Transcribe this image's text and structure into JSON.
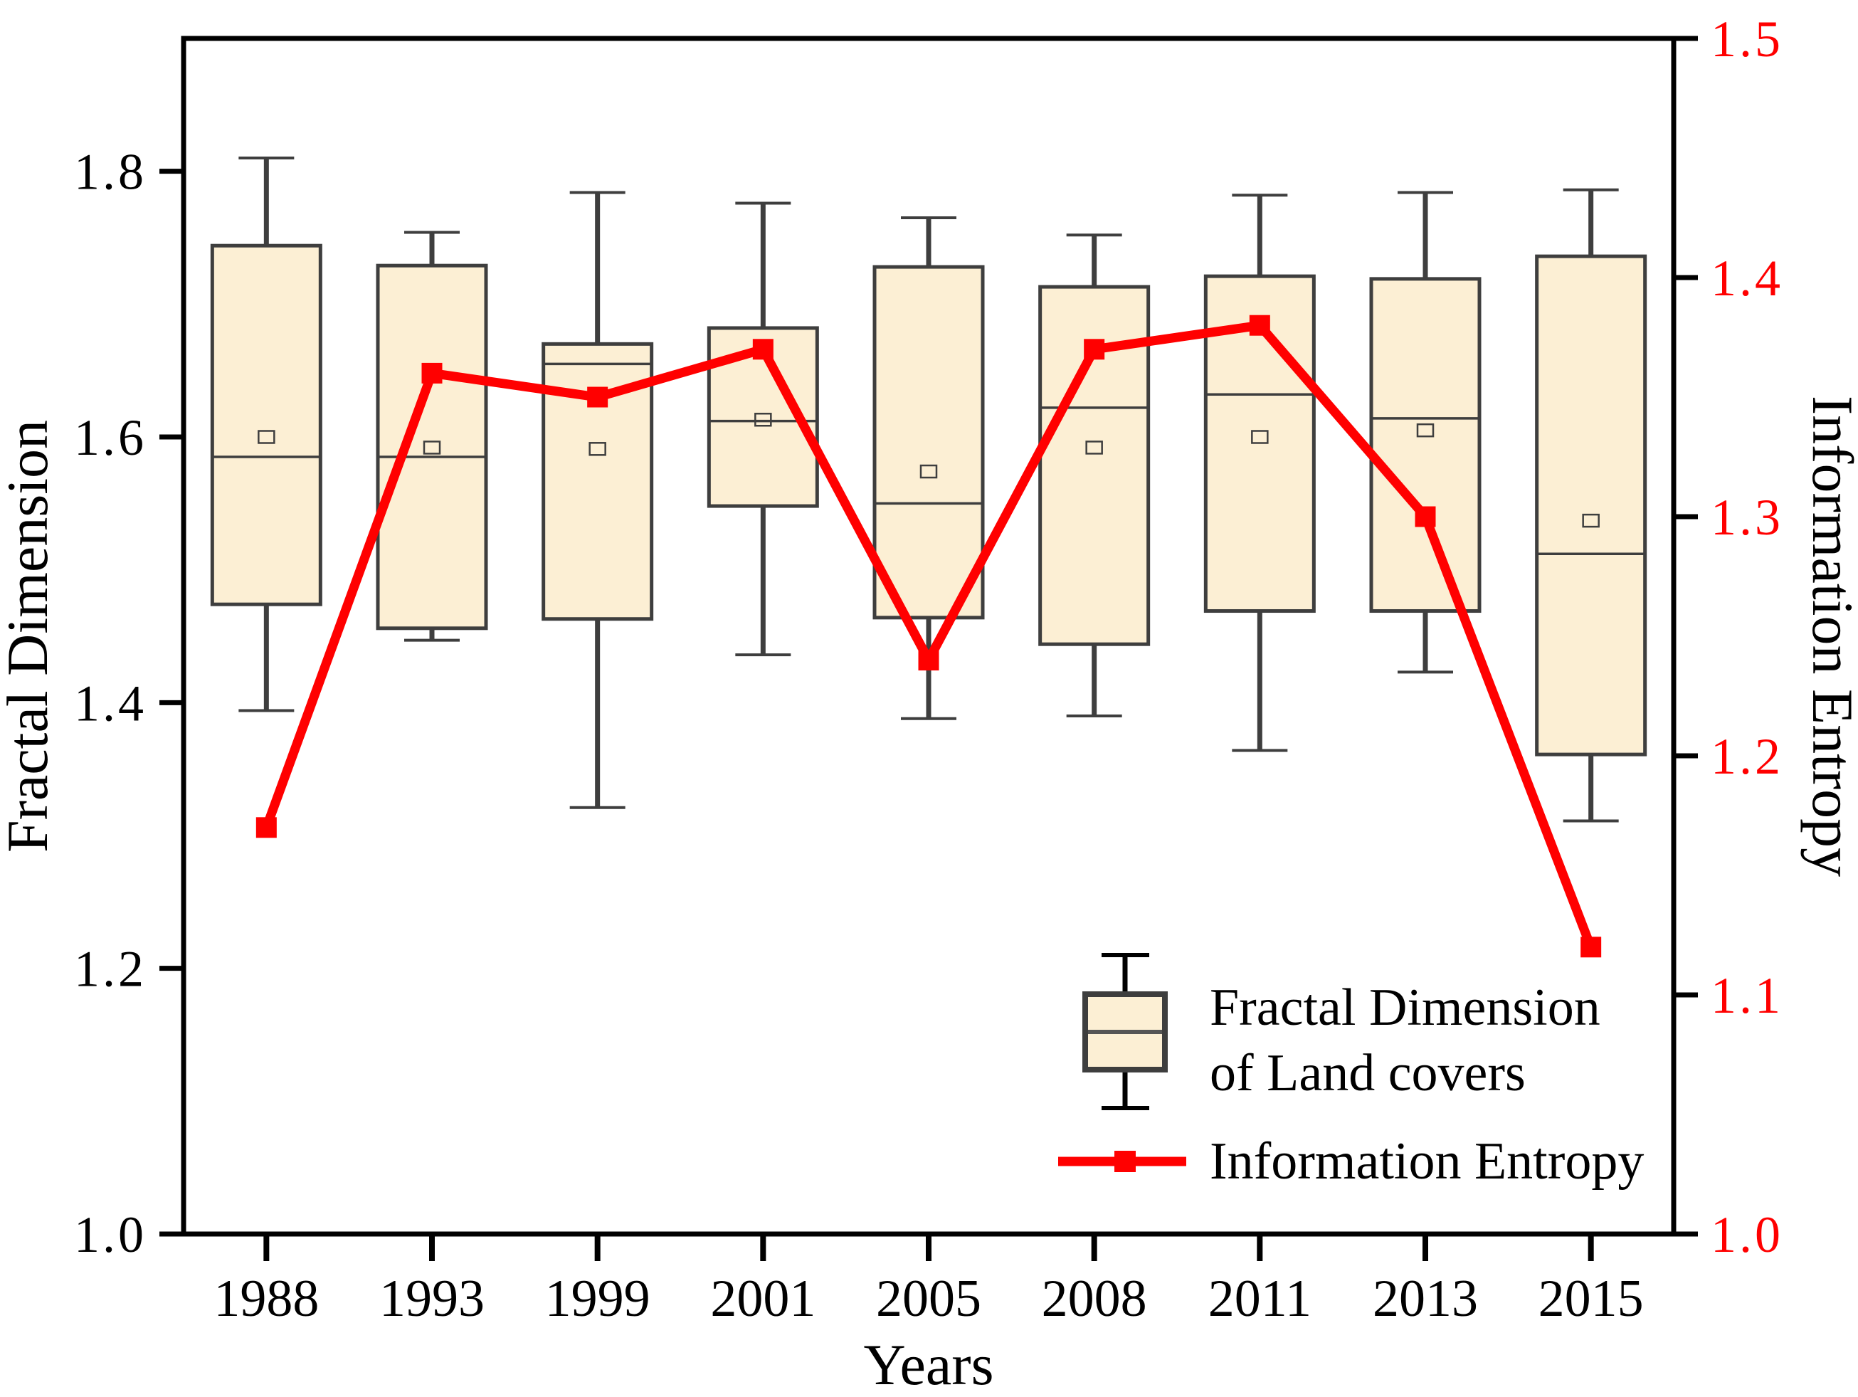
{
  "chart_data": {
    "type": "box+line",
    "title": "",
    "categories": [
      "1988",
      "1993",
      "1999",
      "2001",
      "2005",
      "2008",
      "2011",
      "2013",
      "2015"
    ],
    "box_series": {
      "name": "Fractal Dimension of Land covers",
      "axis": "left",
      "boxes": [
        {
          "year": "1988",
          "whisker_low": 1.394,
          "q1": 1.474,
          "median": 1.585,
          "mean": 1.6,
          "q3": 1.744,
          "whisker_high": 1.81
        },
        {
          "year": "1993",
          "whisker_low": 1.447,
          "q1": 1.456,
          "median": 1.585,
          "mean": 1.592,
          "q3": 1.729,
          "whisker_high": 1.754
        },
        {
          "year": "1999",
          "whisker_low": 1.321,
          "q1": 1.463,
          "median": 1.655,
          "mean": 1.591,
          "q3": 1.67,
          "whisker_high": 1.784
        },
        {
          "year": "2001",
          "whisker_low": 1.436,
          "q1": 1.548,
          "median": 1.612,
          "mean": 1.613,
          "q3": 1.682,
          "whisker_high": 1.776
        },
        {
          "year": "2005",
          "whisker_low": 1.388,
          "q1": 1.464,
          "median": 1.55,
          "mean": 1.574,
          "q3": 1.728,
          "whisker_high": 1.765
        },
        {
          "year": "2008",
          "whisker_low": 1.39,
          "q1": 1.444,
          "median": 1.622,
          "mean": 1.592,
          "q3": 1.713,
          "whisker_high": 1.752
        },
        {
          "year": "2011",
          "whisker_low": 1.364,
          "q1": 1.469,
          "median": 1.632,
          "mean": 1.6,
          "q3": 1.721,
          "whisker_high": 1.782
        },
        {
          "year": "2013",
          "whisker_low": 1.423,
          "q1": 1.469,
          "median": 1.614,
          "mean": 1.605,
          "q3": 1.719,
          "whisker_high": 1.784
        },
        {
          "year": "2015",
          "whisker_low": 1.311,
          "q1": 1.361,
          "median": 1.512,
          "mean": 1.537,
          "q3": 1.736,
          "whisker_high": 1.786
        }
      ]
    },
    "line_series": {
      "name": "Information Entropy",
      "axis": "right",
      "values": [
        1.17,
        1.36,
        1.35,
        1.37,
        1.24,
        1.37,
        1.38,
        1.3,
        1.12
      ]
    },
    "axes": {
      "left": {
        "label": "Fractal Dimension",
        "min": 1.0,
        "max": 1.9,
        "tick_labels": [
          "1.0",
          "1.2",
          "1.4",
          "1.6",
          "1.8"
        ]
      },
      "right": {
        "label": "Information Entropy",
        "min": 1.0,
        "max": 1.5,
        "tick_labels": [
          "1.0",
          "1.1",
          "1.2",
          "1.3",
          "1.4",
          "1.5"
        ]
      },
      "bottom": {
        "label": "Years"
      }
    },
    "legend": {
      "box_item_line1": "Fractal Dimension",
      "box_item_line2": "of Land covers",
      "line_item": "Information Entropy"
    },
    "layout_hints": {
      "grid": false,
      "legend_position": "lower-right-inside"
    }
  },
  "colors": {
    "box_fill": "#fcefd4",
    "box_edge": "#3e3e3e",
    "entropy_red": "#ff0000",
    "frame": "#000000",
    "legend_median_gray": "#555555"
  }
}
